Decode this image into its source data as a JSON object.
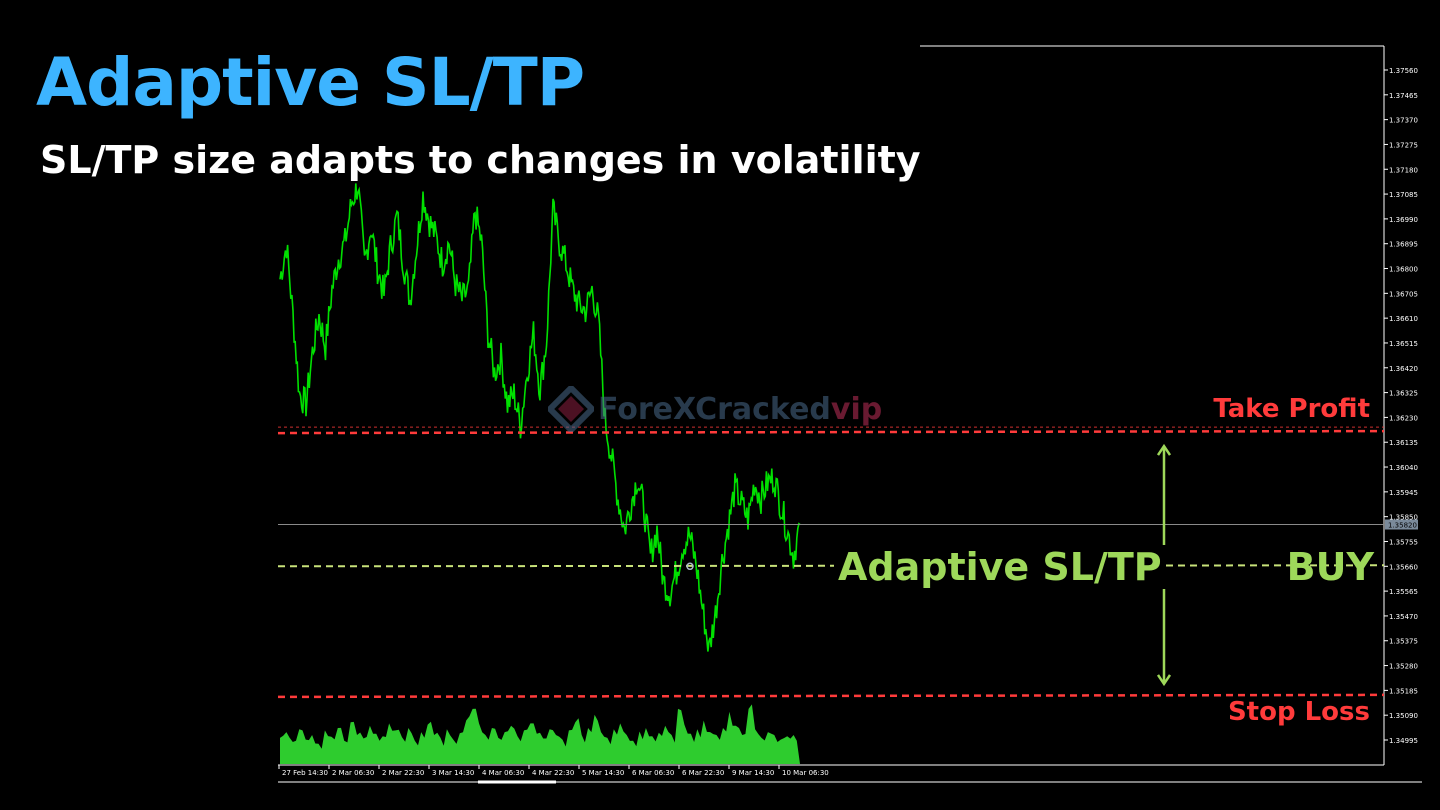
{
  "headline": "Adaptive SL/TP",
  "subline": "SL/TP size adapts to changes in volatility",
  "watermark": {
    "main": "ForeXCracked",
    "suffix": "vip",
    "icon": "forexcracked-logo-icon"
  },
  "colors": {
    "price": "#00e000",
    "volume": "#2ecc2e",
    "stop_lines": "#ff3b3b",
    "entry_line": "#c8e27a",
    "accent": "#9ed85a",
    "headline": "#3db4ff"
  },
  "chart_data": {
    "type": "line",
    "ylim": [
      1.349,
      1.3765
    ],
    "y_ticks": [
      "1.37560",
      "1.37465",
      "1.37370",
      "1.37275",
      "1.37180",
      "1.37085",
      "1.36990",
      "1.36895",
      "1.36800",
      "1.36705",
      "1.36610",
      "1.36515",
      "1.36420",
      "1.36325",
      "1.36230",
      "1.36135",
      "1.36040",
      "1.35945",
      "1.35850",
      "1.35755",
      "1.35660",
      "1.35565",
      "1.35470",
      "1.35375",
      "1.35280",
      "1.35185",
      "1.35090",
      "1.34995"
    ],
    "x_ticks": [
      "27 Feb 14:30",
      "2 Mar 06:30",
      "2 Mar 22:30",
      "3 Mar 14:30",
      "4 Mar 06:30",
      "4 Mar 22:30",
      "5 Mar 14:30",
      "6 Mar 06:30",
      "6 Mar 22:30",
      "9 Mar 14:30",
      "10 Mar 06:30"
    ],
    "current_price": "1.35820",
    "levels": {
      "take_profit": {
        "label": "Take Profit",
        "value": 1.3617
      },
      "entry": {
        "label": "Adaptive SL/TP",
        "value": 1.3566
      },
      "stop_loss": {
        "label": "Stop Loss",
        "value": 1.3516
      },
      "signal": "BUY"
    },
    "price_points": [
      1.3676,
      1.3689,
      1.3662,
      1.3632,
      1.3628,
      1.3648,
      1.3662,
      1.365,
      1.3672,
      1.3684,
      1.369,
      1.3705,
      1.3712,
      1.3682,
      1.3696,
      1.368,
      1.367,
      1.3688,
      1.37,
      1.3682,
      1.3668,
      1.3688,
      1.3708,
      1.3698,
      1.3692,
      1.3682,
      1.369,
      1.3674,
      1.3668,
      1.3672,
      1.3702,
      1.369,
      1.3655,
      1.364,
      1.3646,
      1.3628,
      1.3632,
      1.362,
      1.364,
      1.3655,
      1.3634,
      1.3652,
      1.3702,
      1.369,
      1.3682,
      1.3672,
      1.3666,
      1.3664,
      1.3672,
      1.366,
      1.3622,
      1.3608,
      1.3592,
      1.358,
      1.359,
      1.36,
      1.3588,
      1.357,
      1.358,
      1.356,
      1.3556,
      1.3564,
      1.3574,
      1.3578,
      1.3567,
      1.355,
      1.3534,
      1.3548,
      1.3568,
      1.3582,
      1.3596,
      1.359,
      1.3584,
      1.3598,
      1.3592,
      1.3598,
      1.36,
      1.359,
      1.358,
      1.357,
      1.3582
    ],
    "volume_points": [
      0.45,
      0.55,
      0.38,
      0.6,
      0.42,
      0.5,
      0.35,
      0.58,
      0.47,
      0.62,
      0.4,
      0.72,
      0.5,
      0.44,
      0.66,
      0.52,
      0.48,
      0.7,
      0.58,
      0.46,
      0.62,
      0.4,
      0.55,
      0.68,
      0.5,
      0.45,
      0.6,
      0.42,
      0.53,
      0.75,
      0.95,
      0.7,
      0.5,
      0.62,
      0.45,
      0.55,
      0.66,
      0.48,
      0.58,
      0.7,
      0.52,
      0.44,
      0.6,
      0.5,
      0.42,
      0.58,
      0.72,
      0.5,
      0.62,
      0.85,
      0.55,
      0.45,
      0.6,
      0.7,
      0.5,
      0.4,
      0.56,
      0.62,
      0.48,
      0.54,
      0.66,
      0.5,
      0.95,
      0.68,
      0.52,
      0.6,
      0.75,
      0.55,
      0.5,
      0.62,
      0.9,
      0.66,
      0.5,
      0.95,
      0.6,
      0.45,
      0.55,
      0.5,
      0.42,
      0.48,
      0.5
    ]
  }
}
